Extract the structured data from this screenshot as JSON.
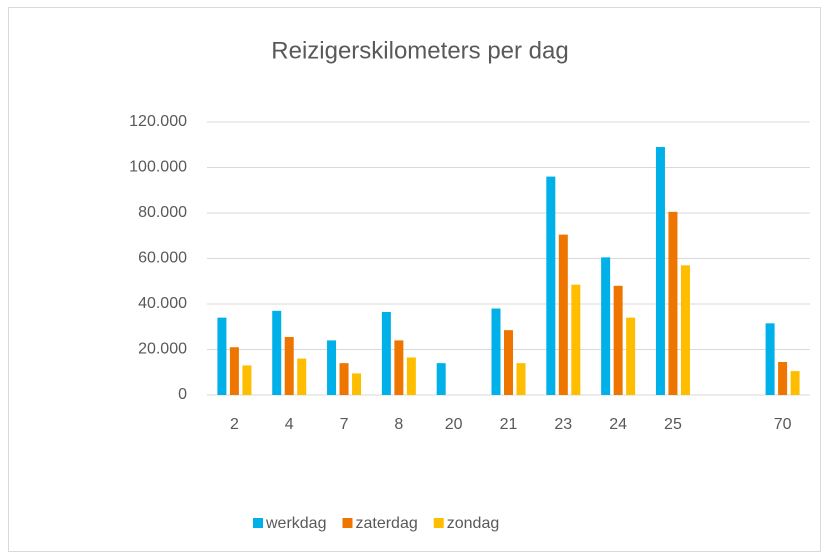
{
  "chart_data": {
    "type": "bar",
    "title": "Reizigerskilometers per dag",
    "categories": [
      "2",
      "4",
      "7",
      "8",
      "20",
      "21",
      "23",
      "24",
      "25",
      null,
      "70"
    ],
    "series": [
      {
        "name": "werkdag",
        "color": "#00b0e8",
        "values": [
          34000,
          37000,
          24000,
          36500,
          14000,
          38000,
          96000,
          60500,
          109000,
          null,
          31500
        ]
      },
      {
        "name": "zaterdag",
        "color": "#ee7600",
        "values": [
          21000,
          25500,
          14000,
          24000,
          null,
          28500,
          70500,
          48000,
          80500,
          null,
          14500
        ]
      },
      {
        "name": "zondag",
        "color": "#ffbd00",
        "values": [
          13000,
          16000,
          9500,
          16500,
          null,
          14000,
          48500,
          34000,
          57000,
          null,
          10500
        ]
      }
    ],
    "ylim": [
      0,
      120000
    ],
    "yticks": [
      0,
      {
        "value": 20000,
        "label": "20.000"
      },
      {
        "value": 40000,
        "label": "40.000"
      },
      {
        "value": 60000,
        "label": "60.000"
      },
      {
        "value": 80000,
        "label": "80.000"
      },
      {
        "value": 100000,
        "label": "100.000"
      },
      {
        "value": 120000,
        "label": "120.000"
      }
    ],
    "grid": true,
    "legend": "bottom"
  }
}
